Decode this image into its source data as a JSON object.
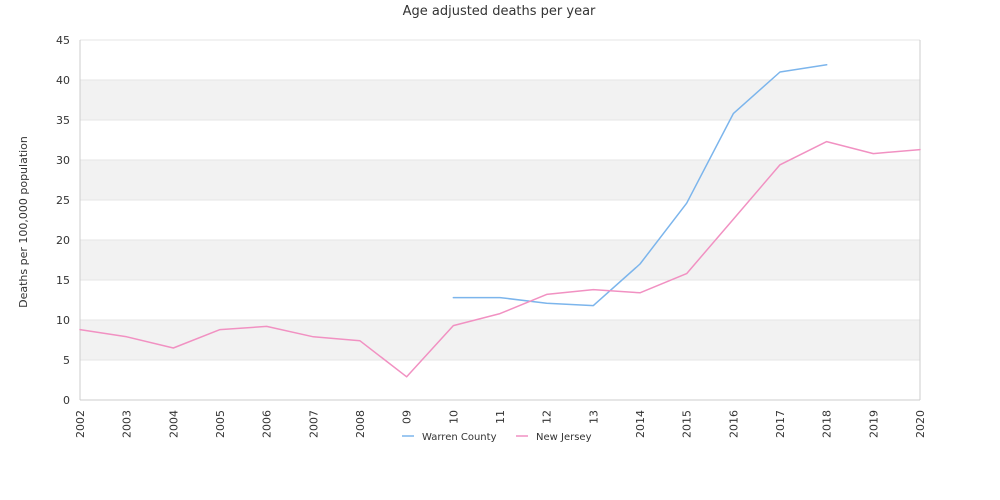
{
  "chart_data": {
    "type": "line",
    "title": "Age adjusted deaths per year",
    "xlabel": "",
    "ylabel": "Deaths per 100,000 population",
    "categories": [
      "2002",
      "2003",
      "2004",
      "2005",
      "2006",
      "2007",
      "2008",
      "09",
      "10",
      "11",
      "12",
      "13",
      "2014",
      "2015",
      "2016",
      "2017",
      "2018",
      "2019",
      "2020"
    ],
    "ylim": [
      0,
      45
    ],
    "yticks": [
      0,
      5,
      10,
      15,
      20,
      25,
      30,
      35,
      40,
      45
    ],
    "grid": "horizontal alternating bands",
    "legend_position": "bottom",
    "series": [
      {
        "name": "Warren County",
        "color": "#7cb5ec",
        "values": [
          null,
          null,
          null,
          null,
          null,
          null,
          null,
          null,
          12.8,
          12.8,
          12.1,
          11.8,
          17.0,
          24.6,
          35.8,
          41.0,
          41.9,
          null,
          null
        ]
      },
      {
        "name": "New Jersey",
        "color": "#f191c2",
        "values": [
          8.8,
          7.9,
          6.5,
          8.8,
          9.2,
          7.9,
          7.4,
          2.9,
          9.3,
          10.8,
          13.2,
          13.8,
          13.4,
          15.8,
          22.6,
          29.4,
          32.3,
          30.8,
          31.3
        ]
      }
    ]
  }
}
